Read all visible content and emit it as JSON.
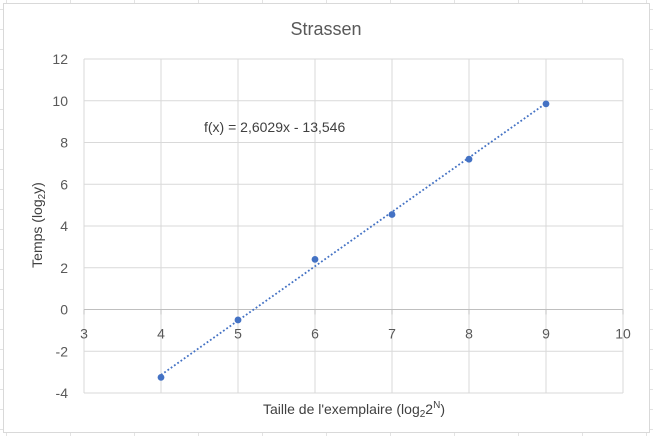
{
  "chart_data": {
    "type": "scatter",
    "title": "Strassen",
    "xlabel": {
      "base": "Taille de l'exemplaire (log",
      "sub": "2",
      "mid": "2",
      "sup": "N",
      "end": ")"
    },
    "ylabel": {
      "base": "Temps (log",
      "sub": "2",
      "end": "y)"
    },
    "xlim": [
      3,
      10
    ],
    "ylim": [
      -4,
      12
    ],
    "x_ticks": [
      3,
      4,
      5,
      6,
      7,
      8,
      9,
      10
    ],
    "y_ticks": [
      -4,
      -2,
      0,
      2,
      4,
      6,
      8,
      10,
      12
    ],
    "x_tick_labels": [
      "3",
      "4",
      "5",
      "6",
      "7",
      "8",
      "9",
      "10"
    ],
    "y_tick_labels": [
      "-4",
      "-2",
      "0",
      "2",
      "4",
      "6",
      "8",
      "10",
      "12"
    ],
    "grid": true,
    "series": [
      {
        "x": [
          4,
          5,
          6,
          7,
          8,
          9
        ],
        "y": [
          -3.25,
          -0.5,
          2.4,
          4.55,
          7.2,
          9.85
        ],
        "color": "#4472c4"
      }
    ],
    "trendline": {
      "slope": 2.6029,
      "intercept": -13.546,
      "x_range": [
        4,
        9
      ],
      "style": "dotted",
      "color": "#4472c4",
      "equation_label": "f(x) = 2,6029x - 13,546"
    }
  }
}
